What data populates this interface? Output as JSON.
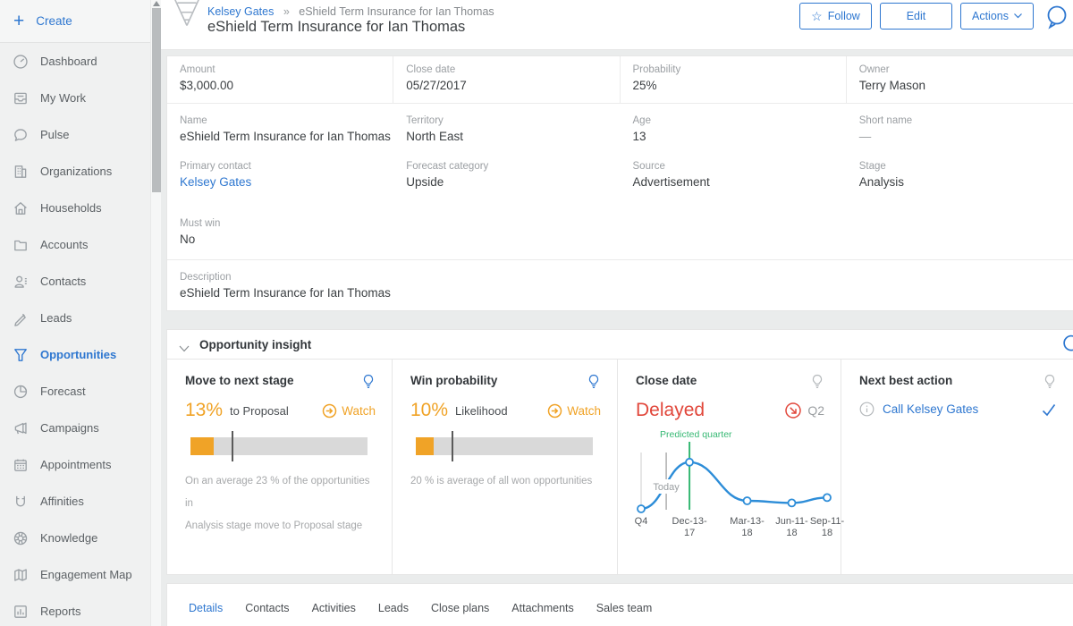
{
  "colors": {
    "accent": "#2e77d0",
    "orange": "#f0a327",
    "red": "#e1473b",
    "green": "#36b873",
    "chart_blue": "#2d8dd8"
  },
  "sidebar": {
    "create_label": "Create",
    "items": [
      {
        "id": "dashboard",
        "icon": "dashboard-icon",
        "label": "Dashboard",
        "active": false
      },
      {
        "id": "my-work",
        "icon": "my-work-icon",
        "label": "My Work",
        "active": false
      },
      {
        "id": "pulse",
        "icon": "pulse-icon",
        "label": "Pulse",
        "active": false
      },
      {
        "id": "organizations",
        "icon": "organizations-icon",
        "label": "Organizations",
        "active": false
      },
      {
        "id": "households",
        "icon": "households-icon",
        "label": "Households",
        "active": false
      },
      {
        "id": "accounts",
        "icon": "accounts-icon",
        "label": "Accounts",
        "active": false
      },
      {
        "id": "contacts",
        "icon": "contacts-icon",
        "label": "Contacts",
        "active": false
      },
      {
        "id": "leads",
        "icon": "leads-icon",
        "label": "Leads",
        "active": false
      },
      {
        "id": "opportunities",
        "icon": "opportunities-icon",
        "label": "Opportunities",
        "active": true
      },
      {
        "id": "forecast",
        "icon": "forecast-icon",
        "label": "Forecast",
        "active": false
      },
      {
        "id": "campaigns",
        "icon": "campaigns-icon",
        "label": "Campaigns",
        "active": false
      },
      {
        "id": "appointments",
        "icon": "appointments-icon",
        "label": "Appointments",
        "active": false
      },
      {
        "id": "affinities",
        "icon": "affinities-icon",
        "label": "Affinities",
        "active": false
      },
      {
        "id": "knowledge",
        "icon": "knowledge-icon",
        "label": "Knowledge",
        "active": false
      },
      {
        "id": "engagement-map",
        "icon": "engagement-map-icon",
        "label": "Engagement Map",
        "active": false
      },
      {
        "id": "reports",
        "icon": "reports-icon",
        "label": "Reports",
        "active": false
      }
    ]
  },
  "header": {
    "breadcrumb": {
      "parent": "Kelsey Gates",
      "separator": "»",
      "current": "eShield Term Insurance for Ian Thomas"
    },
    "title": "eShield Term Insurance for Ian Thomas",
    "follow_label": "Follow",
    "edit_label": "Edit",
    "actions_label": "Actions"
  },
  "details": {
    "row1": [
      {
        "label": "Amount",
        "value": "$3,000.00"
      },
      {
        "label": "Close date",
        "value": "05/27/2017"
      },
      {
        "label": "Probability",
        "value": "25%"
      },
      {
        "label": "Owner",
        "value": "Terry Mason"
      }
    ],
    "row2": [
      {
        "label": "Name",
        "value": "eShield Term Insurance for Ian Thomas"
      },
      {
        "label": "Territory",
        "value": "North East"
      },
      {
        "label": "Age",
        "value": "13"
      },
      {
        "label": "Short name",
        "value": "—"
      }
    ],
    "row3": [
      {
        "label": "Primary contact",
        "value": "Kelsey Gates",
        "link": true
      },
      {
        "label": "Forecast category",
        "value": "Upside"
      },
      {
        "label": "Source",
        "value": "Advertisement"
      },
      {
        "label": "Stage",
        "value": "Analysis"
      }
    ],
    "must_win": {
      "label": "Must win",
      "value": "No"
    },
    "description": {
      "label": "Description",
      "value": "eShield Term Insurance for Ian Thomas"
    }
  },
  "insight": {
    "title": "Opportunity insight",
    "cards": {
      "move": {
        "title": "Move to next stage",
        "value": "13%",
        "value_label": "to  Proposal",
        "watch_label": "Watch",
        "bar": {
          "fill_pct": 13,
          "marker_pct": 23
        },
        "desc_line1": "On an average 23 % of the opportunities in",
        "desc_line2": "Analysis  stage move to Proposal  stage"
      },
      "win": {
        "title": "Win probability",
        "value": "10%",
        "value_label": "Likelihood",
        "watch_label": "Watch",
        "bar": {
          "fill_pct": 10,
          "marker_pct": 20
        },
        "desc_line1": "20 % is  average of all won opportunities",
        "desc_line2": ""
      },
      "close": {
        "title": "Close date",
        "status": "Delayed",
        "quarter": "Q2"
      },
      "action": {
        "title": "Next best action",
        "link": "Call Kelsey Gates"
      }
    }
  },
  "chart_data": {
    "type": "line",
    "x_labels": [
      "Q4",
      "Dec-13-17",
      "Mar-13-18",
      "Jun-11-18",
      "Sep-11-18"
    ],
    "tick_lines": [
      [
        "Q4"
      ],
      [
        "Dec-13-",
        "17"
      ],
      [
        "Mar-13-",
        "18"
      ],
      [
        "Jun-11-",
        "18"
      ],
      [
        "Sep-11-",
        "18"
      ]
    ],
    "x_positions": [
      0,
      0.26,
      0.57,
      0.81,
      1
    ],
    "y_values": [
      5,
      92,
      20,
      16,
      26
    ],
    "ylim": [
      0,
      100
    ],
    "grid": false,
    "today_label": "Today",
    "today_position": 0.135,
    "predicted_label": "Predicted quarter",
    "predicted_position": 0.26
  },
  "tabs": [
    {
      "label": "Details",
      "active": true
    },
    {
      "label": "Contacts",
      "active": false
    },
    {
      "label": "Activities",
      "active": false
    },
    {
      "label": "Leads",
      "active": false
    },
    {
      "label": "Close plans",
      "active": false
    },
    {
      "label": "Attachments",
      "active": false
    },
    {
      "label": "Sales team",
      "active": false
    }
  ]
}
